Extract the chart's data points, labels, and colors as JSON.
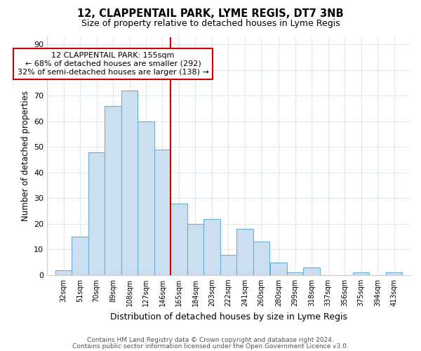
{
  "title1": "12, CLAPPENTAIL PARK, LYME REGIS, DT7 3NB",
  "title2": "Size of property relative to detached houses in Lyme Regis",
  "xlabel": "Distribution of detached houses by size in Lyme Regis",
  "ylabel": "Number of detached properties",
  "bin_labels": [
    "32sqm",
    "51sqm",
    "70sqm",
    "89sqm",
    "108sqm",
    "127sqm",
    "146sqm",
    "165sqm",
    "184sqm",
    "203sqm",
    "222sqm",
    "241sqm",
    "260sqm",
    "280sqm",
    "299sqm",
    "318sqm",
    "337sqm",
    "356sqm",
    "375sqm",
    "394sqm",
    "413sqm"
  ],
  "bar_heights": [
    2,
    15,
    48,
    66,
    72,
    60,
    49,
    28,
    20,
    22,
    8,
    18,
    13,
    5,
    1,
    3,
    0,
    0,
    1,
    0,
    1
  ],
  "bar_color": "#ccdff0",
  "bar_edge_color": "#6aaed6",
  "vline_x_index": 7,
  "vline_color": "#cc0000",
  "annot_line1": "12 CLAPPENTAIL PARK: 155sqm",
  "annot_line2": "← 68% of detached houses are smaller (292)",
  "annot_line3": "32% of semi-detached houses are larger (138) →",
  "annotation_box_color": "#ffffff",
  "annotation_box_edge_color": "#cc0000",
  "ylim": [
    0,
    93
  ],
  "yticks": [
    0,
    10,
    20,
    30,
    40,
    50,
    60,
    70,
    80,
    90
  ],
  "footnote1": "Contains HM Land Registry data © Crown copyright and database right 2024.",
  "footnote2": "Contains public sector information licensed under the Open Government Licence v3.0.",
  "bg_color": "#ffffff",
  "plot_bg_color": "#ffffff",
  "grid_color": "#dce8f0",
  "bin_width": 19,
  "bin_starts": [
    32,
    51,
    70,
    89,
    108,
    127,
    146,
    165,
    184,
    203,
    222,
    241,
    260,
    280,
    299,
    318,
    337,
    356,
    375,
    394,
    413
  ]
}
